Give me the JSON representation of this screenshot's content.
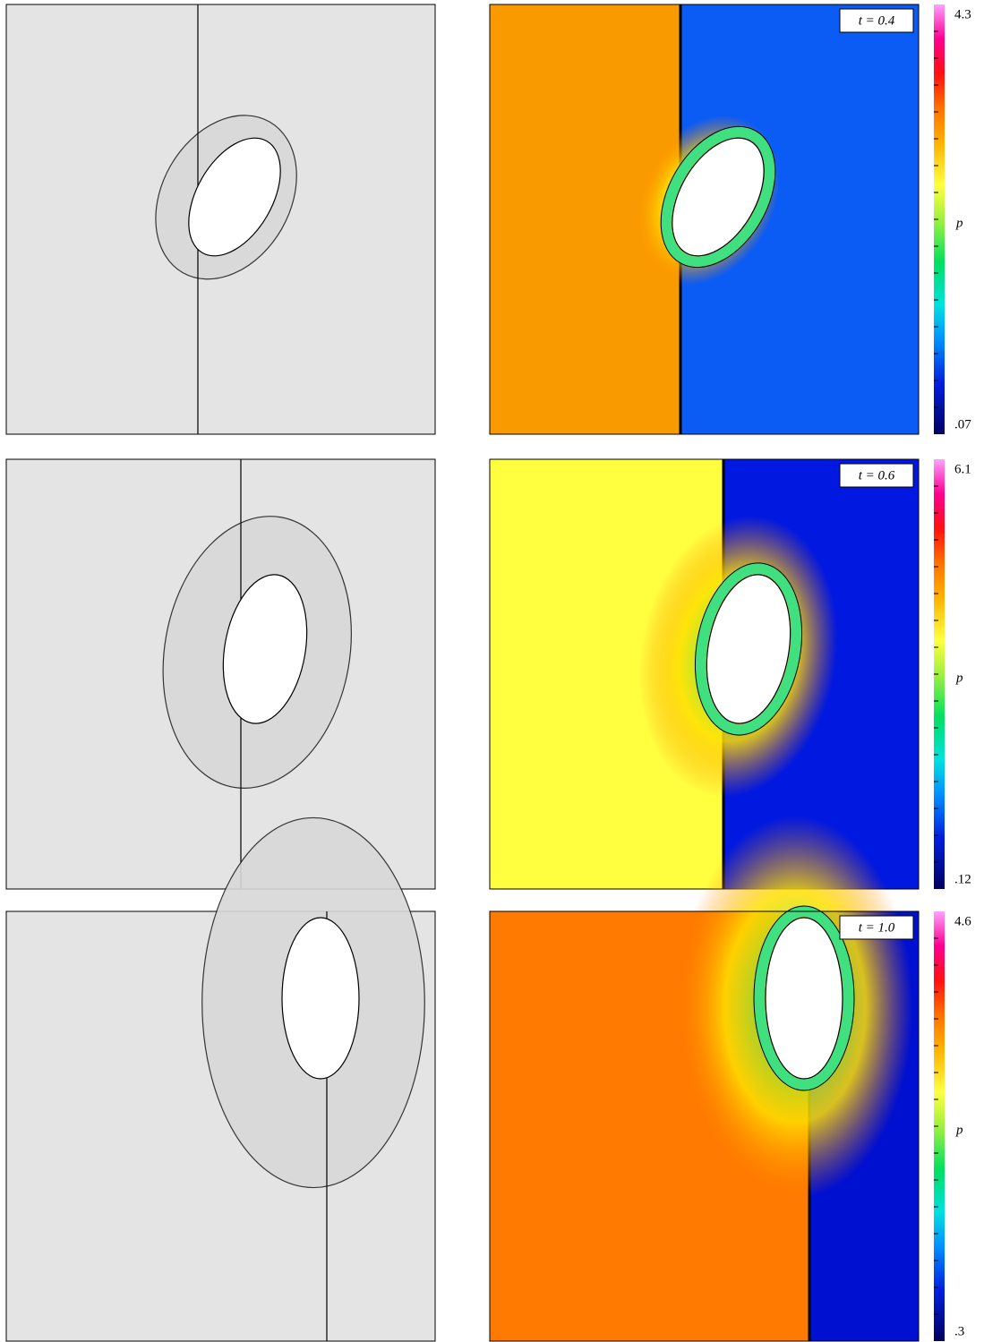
{
  "panels": [
    {
      "time_label": "t = 0.4",
      "colorbar": {
        "max": "4.3",
        "min": ".07",
        "label": "p"
      }
    },
    {
      "time_label": "t = 0.6",
      "colorbar": {
        "max": "6.1",
        "min": ".12",
        "label": "p"
      }
    },
    {
      "time_label": "t = 1.0",
      "colorbar": {
        "max": "4.6",
        "min": ".3",
        "label": "p"
      }
    }
  ]
}
